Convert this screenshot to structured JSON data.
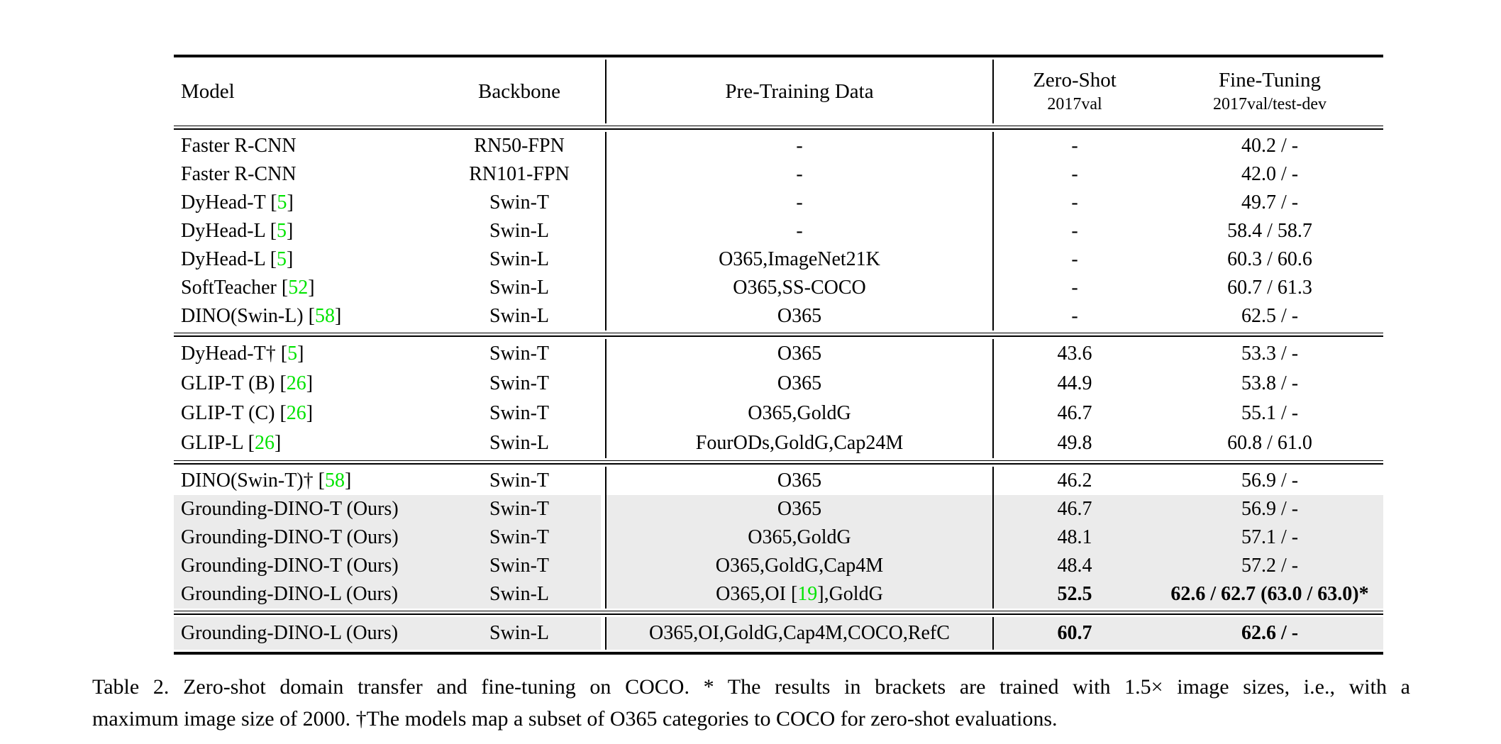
{
  "colors": {
    "cite_green": "#00e400",
    "row_gray": "#ebebeb"
  },
  "table": {
    "header": {
      "model": "Model",
      "backbone": "Backbone",
      "pretraining": "Pre-Training Data",
      "zero_shot": "Zero-Shot",
      "zero_shot_sub": "2017val",
      "fine_tuning": "Fine-Tuning",
      "fine_tuning_sub": "2017val/test-dev"
    },
    "blocks": [
      {
        "rows": [
          {
            "model": "Faster R-CNN",
            "backbone": "RN50-FPN",
            "pretrain": "-",
            "zeroshot": "-",
            "finetune": "40.2 / -"
          },
          {
            "model": "Faster R-CNN",
            "backbone": "RN101-FPN",
            "pretrain": "-",
            "zeroshot": "-",
            "finetune": "42.0 / -"
          },
          {
            "model": "DyHead-T",
            "cite": "5",
            "backbone": "Swin-T",
            "pretrain": "-",
            "zeroshot": "-",
            "finetune": "49.7 / -"
          },
          {
            "model": "DyHead-L",
            "cite": "5",
            "backbone": "Swin-L",
            "pretrain": "-",
            "zeroshot": "-",
            "finetune": "58.4 / 58.7"
          },
          {
            "model": "DyHead-L",
            "cite": "5",
            "backbone": "Swin-L",
            "pretrain": "O365,ImageNet21K",
            "zeroshot": "-",
            "finetune": "60.3 / 60.6"
          },
          {
            "model": "SoftTeacher",
            "cite": "52",
            "backbone": "Swin-L",
            "pretrain": "O365,SS-COCO",
            "zeroshot": "-",
            "finetune": "60.7 / 61.3"
          },
          {
            "model": "DINO(Swin-L)",
            "cite": "58",
            "backbone": "Swin-L",
            "pretrain": "O365",
            "zeroshot": "-",
            "finetune": "62.5 / -"
          }
        ]
      },
      {
        "rows": [
          {
            "model": "DyHead-T†",
            "cite": "5",
            "backbone": "Swin-T",
            "pretrain": "O365",
            "zeroshot": "43.6",
            "finetune": "53.3 / -"
          },
          {
            "model": "GLIP-T (B)",
            "cite": "26",
            "backbone": "Swin-T",
            "pretrain": "O365",
            "zeroshot": "44.9",
            "finetune": "53.8 / -"
          },
          {
            "model": "GLIP-T (C)",
            "cite": "26",
            "backbone": "Swin-T",
            "pretrain": "O365,GoldG",
            "zeroshot": "46.7",
            "finetune": "55.1 / -"
          },
          {
            "model": "GLIP-L",
            "cite": "26",
            "backbone": "Swin-L",
            "pretrain": "FourODs,GoldG,Cap24M",
            "zeroshot": "49.8",
            "finetune": "60.8 / 61.0"
          }
        ]
      },
      {
        "rows": [
          {
            "model": "DINO(Swin-T)†",
            "cite": "58",
            "backbone": "Swin-T",
            "pretrain": "O365",
            "zeroshot": "46.2",
            "finetune": "56.9 / -"
          },
          {
            "model": "Grounding-DINO-T (Ours)",
            "backbone": "Swin-T",
            "pretrain": "O365",
            "zeroshot": "46.7",
            "finetune": "56.9 / -",
            "gray": true
          },
          {
            "model": "Grounding-DINO-T (Ours)",
            "backbone": "Swin-T",
            "pretrain": "O365,GoldG",
            "zeroshot": "48.1",
            "finetune": "57.1 / -",
            "gray": true
          },
          {
            "model": "Grounding-DINO-T (Ours)",
            "backbone": "Swin-T",
            "pretrain": "O365,GoldG,Cap4M",
            "zeroshot": "48.4",
            "finetune": "57.2 / -",
            "gray": true
          },
          {
            "model": "Grounding-DINO-L (Ours)",
            "backbone": "Swin-L",
            "pretrain_parts": [
              "O365,OI [",
              "19",
              "],GoldG"
            ],
            "zeroshot": "52.5",
            "finetune": "62.6 / 62.7 (63.0 / 63.0)*",
            "bold": true,
            "gray": true
          }
        ]
      },
      {
        "rows": [
          {
            "model": "Grounding-DINO-L (Ours)",
            "backbone": "Swin-L",
            "pretrain": "O365,OI,GoldG,Cap4M,COCO,RefC",
            "zeroshot": "60.7",
            "finetune": "62.6 / -",
            "bold": true,
            "gray": true
          }
        ]
      }
    ]
  },
  "caption": {
    "line1": "Table 2.  Zero-shot domain transfer and fine-tuning on COCO. * The results in brackets are trained with 1.5× image sizes, i.e., with a",
    "line2": "maximum image size of 2000. †The models map a subset of O365 categories to COCO for zero-shot evaluations."
  }
}
